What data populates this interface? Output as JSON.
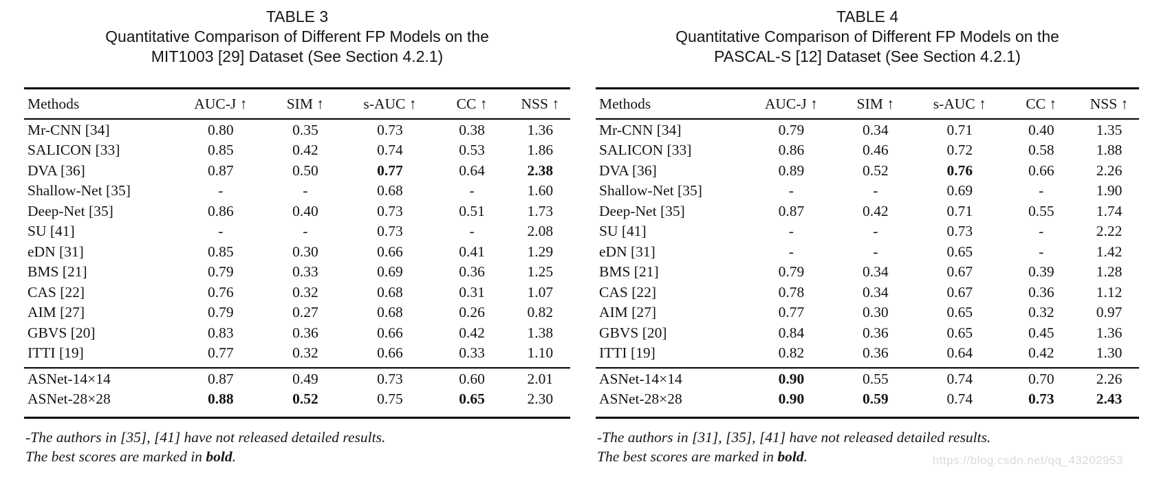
{
  "watermark": {
    "text": "https://blog.csdn.net/qq_43202953",
    "color": "#dadada"
  },
  "tables": [
    {
      "caption": [
        "TABLE 3",
        "Quantitative Comparison of Different FP Models on the",
        "MIT1003 [29] Dataset (See Section 4.2.1)"
      ],
      "columns": [
        "Methods",
        "AUC-J ↑",
        "SIM ↑",
        "s-AUC ↑",
        "CC ↑",
        "NSS ↑"
      ],
      "rows": [
        {
          "method": "Mr-CNN [34]",
          "values": [
            {
              "t": "0.80"
            },
            {
              "t": "0.35"
            },
            {
              "t": "0.73"
            },
            {
              "t": "0.38"
            },
            {
              "t": "1.36"
            }
          ]
        },
        {
          "method": "SALICON [33]",
          "values": [
            {
              "t": "0.85"
            },
            {
              "t": "0.42"
            },
            {
              "t": "0.74"
            },
            {
              "t": "0.53"
            },
            {
              "t": "1.86"
            }
          ]
        },
        {
          "method": "DVA [36]",
          "values": [
            {
              "t": "0.87"
            },
            {
              "t": "0.50"
            },
            {
              "t": "0.77",
              "b": true
            },
            {
              "t": "0.64"
            },
            {
              "t": "2.38",
              "b": true
            }
          ]
        },
        {
          "method": "Shallow-Net [35]",
          "values": [
            {
              "t": "-"
            },
            {
              "t": "-"
            },
            {
              "t": "0.68"
            },
            {
              "t": "-"
            },
            {
              "t": "1.60"
            }
          ]
        },
        {
          "method": "Deep-Net [35]",
          "values": [
            {
              "t": "0.86"
            },
            {
              "t": "0.40"
            },
            {
              "t": "0.73"
            },
            {
              "t": "0.51"
            },
            {
              "t": "1.73"
            }
          ]
        },
        {
          "method": "SU [41]",
          "values": [
            {
              "t": "-"
            },
            {
              "t": "-"
            },
            {
              "t": "0.73"
            },
            {
              "t": "-"
            },
            {
              "t": "2.08"
            }
          ]
        },
        {
          "method": "eDN [31]",
          "values": [
            {
              "t": "0.85"
            },
            {
              "t": "0.30"
            },
            {
              "t": "0.66"
            },
            {
              "t": "0.41"
            },
            {
              "t": "1.29"
            }
          ]
        },
        {
          "method": "BMS [21]",
          "values": [
            {
              "t": "0.79"
            },
            {
              "t": "0.33"
            },
            {
              "t": "0.69"
            },
            {
              "t": "0.36"
            },
            {
              "t": "1.25"
            }
          ]
        },
        {
          "method": "CAS [22]",
          "values": [
            {
              "t": "0.76"
            },
            {
              "t": "0.32"
            },
            {
              "t": "0.68"
            },
            {
              "t": "0.31"
            },
            {
              "t": "1.07"
            }
          ]
        },
        {
          "method": "AIM [27]",
          "values": [
            {
              "t": "0.79"
            },
            {
              "t": "0.27"
            },
            {
              "t": "0.68"
            },
            {
              "t": "0.26"
            },
            {
              "t": "0.82"
            }
          ]
        },
        {
          "method": "GBVS [20]",
          "values": [
            {
              "t": "0.83"
            },
            {
              "t": "0.36"
            },
            {
              "t": "0.66"
            },
            {
              "t": "0.42"
            },
            {
              "t": "1.38"
            }
          ]
        },
        {
          "method": "ITTI [19]",
          "values": [
            {
              "t": "0.77"
            },
            {
              "t": "0.32"
            },
            {
              "t": "0.66"
            },
            {
              "t": "0.33"
            },
            {
              "t": "1.10"
            }
          ]
        }
      ],
      "asnet_rows": [
        {
          "method": "ASNet-14×14",
          "values": [
            {
              "t": "0.87"
            },
            {
              "t": "0.49"
            },
            {
              "t": "0.73"
            },
            {
              "t": "0.60"
            },
            {
              "t": "2.01"
            }
          ]
        },
        {
          "method": "ASNet-28×28",
          "values": [
            {
              "t": "0.88",
              "b": true
            },
            {
              "t": "0.52",
              "b": true
            },
            {
              "t": "0.75"
            },
            {
              "t": "0.65",
              "b": true
            },
            {
              "t": "2.30"
            }
          ]
        }
      ],
      "footnote1": "-The authors in [35], [41] have not released detailed results.",
      "footnote2": {
        "pre": "The best scores are marked in ",
        "bold": "bold",
        "post": "."
      }
    },
    {
      "caption": [
        "TABLE 4",
        "Quantitative Comparison of Different FP Models on the",
        "PASCAL-S [12] Dataset (See Section 4.2.1)"
      ],
      "columns": [
        "Methods",
        "AUC-J ↑",
        "SIM ↑",
        "s-AUC ↑",
        "CC ↑",
        "NSS ↑"
      ],
      "rows": [
        {
          "method": "Mr-CNN [34]",
          "values": [
            {
              "t": "0.79"
            },
            {
              "t": "0.34"
            },
            {
              "t": "0.71"
            },
            {
              "t": "0.40"
            },
            {
              "t": "1.35"
            }
          ]
        },
        {
          "method": "SALICON [33]",
          "values": [
            {
              "t": "0.86"
            },
            {
              "t": "0.46"
            },
            {
              "t": "0.72"
            },
            {
              "t": "0.58"
            },
            {
              "t": "1.88"
            }
          ]
        },
        {
          "method": "DVA [36]",
          "values": [
            {
              "t": "0.89"
            },
            {
              "t": "0.52"
            },
            {
              "t": "0.76",
              "b": true
            },
            {
              "t": "0.66"
            },
            {
              "t": "2.26"
            }
          ]
        },
        {
          "method": "Shallow-Net [35]",
          "values": [
            {
              "t": "-"
            },
            {
              "t": "-"
            },
            {
              "t": "0.69"
            },
            {
              "t": "-"
            },
            {
              "t": "1.90"
            }
          ]
        },
        {
          "method": "Deep-Net [35]",
          "values": [
            {
              "t": "0.87"
            },
            {
              "t": "0.42"
            },
            {
              "t": "0.71"
            },
            {
              "t": "0.55"
            },
            {
              "t": "1.74"
            }
          ]
        },
        {
          "method": "SU [41]",
          "values": [
            {
              "t": "-"
            },
            {
              "t": "-"
            },
            {
              "t": "0.73"
            },
            {
              "t": "-"
            },
            {
              "t": "2.22"
            }
          ]
        },
        {
          "method": "eDN [31]",
          "values": [
            {
              "t": "-"
            },
            {
              "t": "-"
            },
            {
              "t": "0.65"
            },
            {
              "t": "-"
            },
            {
              "t": "1.42"
            }
          ]
        },
        {
          "method": "BMS [21]",
          "values": [
            {
              "t": "0.79"
            },
            {
              "t": "0.34"
            },
            {
              "t": "0.67"
            },
            {
              "t": "0.39"
            },
            {
              "t": "1.28"
            }
          ]
        },
        {
          "method": "CAS [22]",
          "values": [
            {
              "t": "0.78"
            },
            {
              "t": "0.34"
            },
            {
              "t": "0.67"
            },
            {
              "t": "0.36"
            },
            {
              "t": "1.12"
            }
          ]
        },
        {
          "method": "AIM [27]",
          "values": [
            {
              "t": "0.77"
            },
            {
              "t": "0.30"
            },
            {
              "t": "0.65"
            },
            {
              "t": "0.32"
            },
            {
              "t": "0.97"
            }
          ]
        },
        {
          "method": "GBVS [20]",
          "values": [
            {
              "t": "0.84"
            },
            {
              "t": "0.36"
            },
            {
              "t": "0.65"
            },
            {
              "t": "0.45"
            },
            {
              "t": "1.36"
            }
          ]
        },
        {
          "method": "ITTI [19]",
          "values": [
            {
              "t": "0.82"
            },
            {
              "t": "0.36"
            },
            {
              "t": "0.64"
            },
            {
              "t": "0.42"
            },
            {
              "t": "1.30"
            }
          ]
        }
      ],
      "asnet_rows": [
        {
          "method": "ASNet-14×14",
          "values": [
            {
              "t": "0.90",
              "b": true
            },
            {
              "t": "0.55"
            },
            {
              "t": "0.74"
            },
            {
              "t": "0.70"
            },
            {
              "t": "2.26"
            }
          ]
        },
        {
          "method": "ASNet-28×28",
          "values": [
            {
              "t": "0.90",
              "b": true
            },
            {
              "t": "0.59",
              "b": true
            },
            {
              "t": "0.74"
            },
            {
              "t": "0.73",
              "b": true
            },
            {
              "t": "2.43",
              "b": true
            }
          ]
        }
      ],
      "footnote1": "-The authors in [31], [35], [41] have not released detailed results.",
      "footnote2": {
        "pre": "The best scores are marked in ",
        "bold": "bold",
        "post": "."
      }
    }
  ]
}
